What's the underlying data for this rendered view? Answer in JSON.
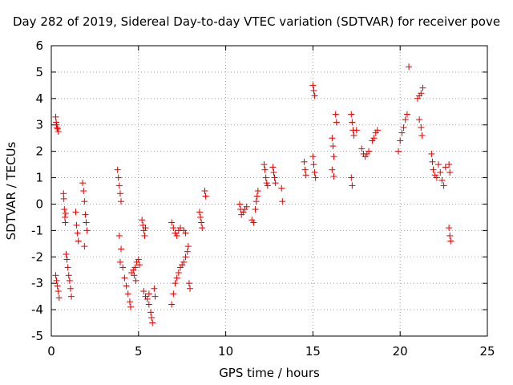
{
  "chart_data": {
    "type": "scatter",
    "title": "Day 282 of 2019, Sidereal Day-to-day VTEC variation (SDTVAR) for receiver pove",
    "xlabel": "GPS time / hours",
    "ylabel": "SDTVAR / TECUs",
    "xlim": [
      0,
      25
    ],
    "ylim": [
      -5,
      6
    ],
    "xticks": [
      "0",
      "5",
      "10",
      "15",
      "20",
      "25"
    ],
    "yticks": [
      "-5",
      "-4",
      "-3",
      "-2",
      "-1",
      "0",
      "1",
      "2",
      "3",
      "4",
      "5",
      "6"
    ],
    "grid": true,
    "marker": "+",
    "color": "#e00000",
    "series": [
      {
        "name": "SDTVAR",
        "points": [
          [
            0.25,
            3.3
          ],
          [
            0.28,
            3.1
          ],
          [
            0.3,
            3.0
          ],
          [
            0.33,
            2.9
          ],
          [
            0.36,
            2.85
          ],
          [
            0.4,
            2.75
          ],
          [
            0.25,
            -2.7
          ],
          [
            0.3,
            -2.9
          ],
          [
            0.35,
            -3.1
          ],
          [
            0.4,
            -3.3
          ],
          [
            0.45,
            -3.55
          ],
          [
            0.7,
            0.4
          ],
          [
            0.72,
            0.2
          ],
          [
            0.75,
            -0.2
          ],
          [
            0.78,
            -0.5
          ],
          [
            0.8,
            -0.7
          ],
          [
            0.82,
            -0.35
          ],
          [
            0.85,
            -1.9
          ],
          [
            0.9,
            -2.1
          ],
          [
            0.95,
            -2.4
          ],
          [
            1.0,
            -2.7
          ],
          [
            1.05,
            -2.9
          ],
          [
            1.1,
            -3.2
          ],
          [
            1.15,
            -3.5
          ],
          [
            1.4,
            -0.3
          ],
          [
            1.45,
            -0.8
          ],
          [
            1.5,
            -1.1
          ],
          [
            1.55,
            -1.4
          ],
          [
            1.8,
            0.8
          ],
          [
            1.85,
            0.5
          ],
          [
            1.9,
            0.1
          ],
          [
            1.95,
            -0.4
          ],
          [
            2.0,
            -0.7
          ],
          [
            2.05,
            -1.0
          ],
          [
            1.9,
            -1.6
          ],
          [
            3.8,
            1.3
          ],
          [
            3.85,
            1.0
          ],
          [
            3.9,
            0.7
          ],
          [
            3.95,
            0.4
          ],
          [
            4.0,
            0.1
          ],
          [
            3.9,
            -1.2
          ],
          [
            4.0,
            -1.7
          ],
          [
            3.95,
            -2.2
          ],
          [
            4.1,
            -2.4
          ],
          [
            4.2,
            -2.8
          ],
          [
            4.3,
            -3.1
          ],
          [
            4.4,
            -3.4
          ],
          [
            4.5,
            -3.7
          ],
          [
            4.55,
            -3.9
          ],
          [
            4.6,
            -2.6
          ],
          [
            4.7,
            -2.5
          ],
          [
            4.8,
            -2.4
          ],
          [
            4.9,
            -2.2
          ],
          [
            5.0,
            -2.1
          ],
          [
            5.05,
            -2.3
          ],
          [
            4.75,
            -2.7
          ],
          [
            4.85,
            -2.9
          ],
          [
            5.2,
            -0.6
          ],
          [
            5.25,
            -0.8
          ],
          [
            5.3,
            -1.0
          ],
          [
            5.35,
            -1.2
          ],
          [
            5.4,
            -0.9
          ],
          [
            5.3,
            -3.3
          ],
          [
            5.4,
            -3.5
          ],
          [
            5.5,
            -3.6
          ],
          [
            5.6,
            -3.4
          ],
          [
            5.6,
            -3.8
          ],
          [
            5.7,
            -4.1
          ],
          [
            5.75,
            -4.3
          ],
          [
            5.8,
            -4.5
          ],
          [
            5.9,
            -3.2
          ],
          [
            5.95,
            -3.5
          ],
          [
            6.9,
            -0.7
          ],
          [
            7.0,
            -0.9
          ],
          [
            7.1,
            -1.1
          ],
          [
            7.2,
            -1.2
          ],
          [
            7.3,
            -1.0
          ],
          [
            7.4,
            -0.9
          ],
          [
            7.6,
            -1.0
          ],
          [
            7.7,
            -1.1
          ],
          [
            6.9,
            -3.8
          ],
          [
            7.0,
            -3.4
          ],
          [
            7.1,
            -3.0
          ],
          [
            7.2,
            -2.8
          ],
          [
            7.3,
            -2.6
          ],
          [
            7.4,
            -2.4
          ],
          [
            7.5,
            -2.3
          ],
          [
            7.6,
            -2.2
          ],
          [
            7.7,
            -2.0
          ],
          [
            7.8,
            -1.8
          ],
          [
            7.85,
            -1.6
          ],
          [
            7.9,
            -3.0
          ],
          [
            7.95,
            -3.2
          ],
          [
            8.5,
            -0.3
          ],
          [
            8.55,
            -0.5
          ],
          [
            8.6,
            -0.7
          ],
          [
            8.65,
            -0.9
          ],
          [
            8.8,
            0.5
          ],
          [
            8.85,
            0.3
          ],
          [
            10.8,
            0.0
          ],
          [
            10.85,
            -0.2
          ],
          [
            10.9,
            -0.4
          ],
          [
            11.0,
            -0.3
          ],
          [
            11.1,
            -0.2
          ],
          [
            11.2,
            -0.1
          ],
          [
            11.5,
            -0.6
          ],
          [
            11.6,
            -0.7
          ],
          [
            11.7,
            -0.2
          ],
          [
            11.75,
            0.1
          ],
          [
            11.8,
            0.3
          ],
          [
            11.85,
            0.5
          ],
          [
            12.2,
            1.5
          ],
          [
            12.25,
            1.3
          ],
          [
            12.3,
            1.0
          ],
          [
            12.35,
            0.8
          ],
          [
            12.4,
            0.7
          ],
          [
            12.7,
            1.4
          ],
          [
            12.75,
            1.2
          ],
          [
            12.8,
            1.0
          ],
          [
            12.85,
            0.8
          ],
          [
            13.2,
            0.6
          ],
          [
            13.25,
            0.1
          ],
          [
            14.5,
            1.6
          ],
          [
            14.55,
            1.3
          ],
          [
            14.6,
            1.1
          ],
          [
            15.0,
            4.5
          ],
          [
            15.05,
            4.3
          ],
          [
            15.1,
            4.1
          ],
          [
            15.0,
            1.8
          ],
          [
            15.05,
            1.5
          ],
          [
            15.1,
            1.2
          ],
          [
            15.15,
            1.0
          ],
          [
            16.1,
            2.5
          ],
          [
            16.15,
            2.2
          ],
          [
            16.2,
            1.8
          ],
          [
            16.1,
            1.3
          ],
          [
            16.2,
            1.05
          ],
          [
            16.3,
            3.4
          ],
          [
            16.35,
            3.1
          ],
          [
            17.2,
            3.4
          ],
          [
            17.25,
            3.1
          ],
          [
            17.3,
            2.8
          ],
          [
            17.35,
            2.6
          ],
          [
            17.2,
            1.0
          ],
          [
            17.25,
            0.7
          ],
          [
            17.5,
            2.8
          ],
          [
            17.8,
            2.1
          ],
          [
            17.9,
            1.9
          ],
          [
            18.0,
            1.8
          ],
          [
            18.1,
            1.9
          ],
          [
            18.2,
            2.0
          ],
          [
            18.4,
            2.4
          ],
          [
            18.5,
            2.5
          ],
          [
            18.6,
            2.7
          ],
          [
            18.7,
            2.8
          ],
          [
            19.9,
            2.0
          ],
          [
            20.0,
            2.4
          ],
          [
            20.1,
            2.7
          ],
          [
            20.2,
            2.9
          ],
          [
            20.3,
            3.2
          ],
          [
            20.4,
            3.4
          ],
          [
            20.5,
            5.2
          ],
          [
            21.0,
            4.0
          ],
          [
            21.1,
            4.1
          ],
          [
            21.2,
            4.2
          ],
          [
            21.3,
            4.4
          ],
          [
            21.1,
            3.2
          ],
          [
            21.2,
            2.9
          ],
          [
            21.25,
            2.6
          ],
          [
            21.8,
            1.9
          ],
          [
            21.85,
            1.6
          ],
          [
            21.9,
            1.3
          ],
          [
            22.0,
            1.1
          ],
          [
            22.1,
            1.0
          ],
          [
            22.2,
            1.5
          ],
          [
            22.3,
            1.2
          ],
          [
            22.4,
            0.9
          ],
          [
            22.5,
            0.7
          ],
          [
            22.6,
            1.4
          ],
          [
            22.8,
            1.5
          ],
          [
            22.85,
            1.2
          ],
          [
            22.8,
            -0.9
          ],
          [
            22.85,
            -1.2
          ],
          [
            22.9,
            -1.4
          ]
        ]
      }
    ]
  }
}
